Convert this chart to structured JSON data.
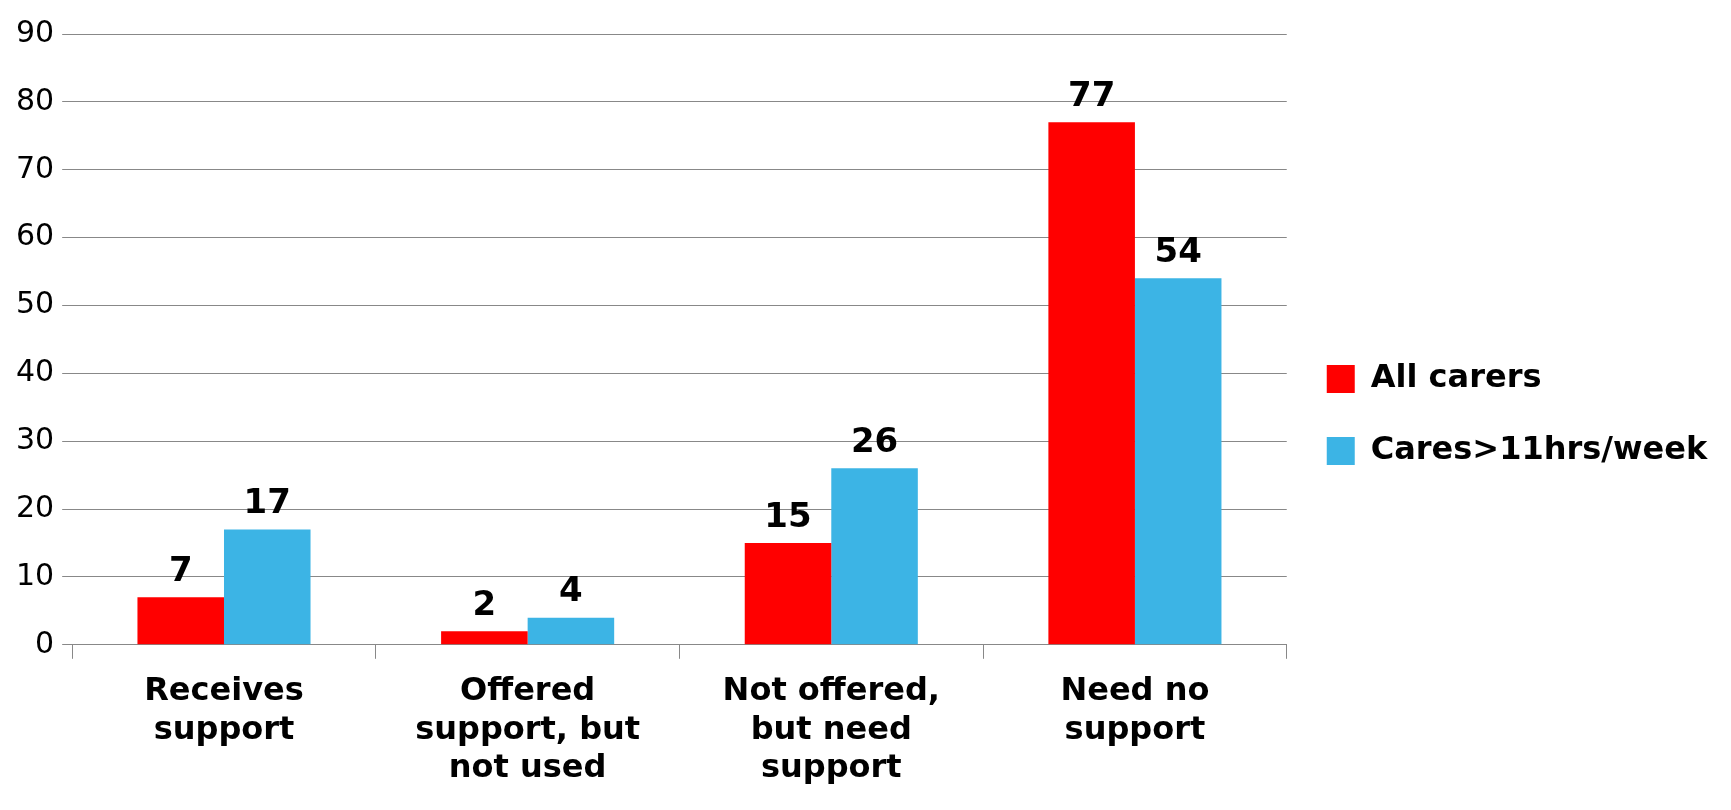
{
  "chart_data": {
    "type": "bar",
    "categories": [
      "Receives support",
      "Offered support, but not used",
      "Not offered, but need support",
      "Need no support"
    ],
    "series": [
      {
        "name": "All carers",
        "color": "#ff0000",
        "values": [
          7,
          2,
          15,
          77
        ]
      },
      {
        "name": "Cares>11hrs/week",
        "color": "#3cb4e5",
        "values": [
          17,
          4,
          26,
          54
        ]
      }
    ],
    "ylim": [
      0,
      90
    ],
    "yticks": [
      0,
      10,
      20,
      30,
      40,
      50,
      60,
      70,
      80,
      90
    ],
    "grid": "y",
    "legend": "right",
    "data_labels": true
  }
}
